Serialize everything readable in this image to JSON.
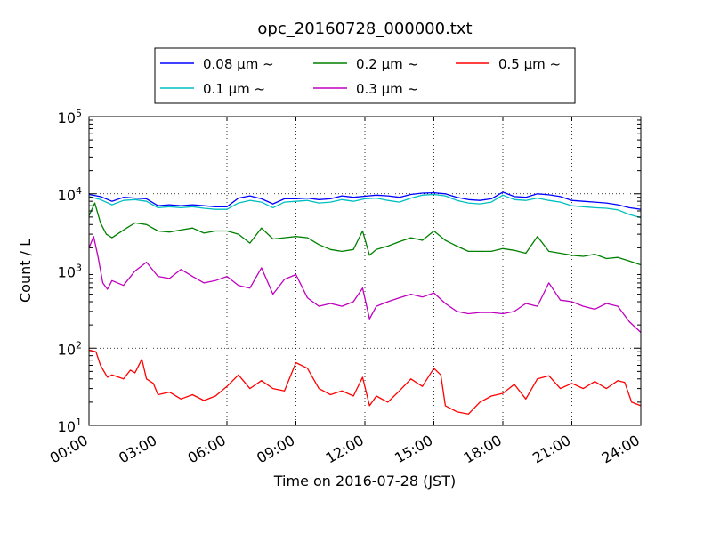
{
  "chart_data": {
    "type": "line",
    "title": "opc_20160728_000000.txt",
    "xlabel": "Time on 2016-07-28 (JST)",
    "ylabel": "Count / L",
    "x_ticks": [
      "00:00",
      "03:00",
      "06:00",
      "09:00",
      "12:00",
      "15:00",
      "18:00",
      "21:00",
      "24:00"
    ],
    "x_range_hours": [
      0,
      24
    ],
    "y_scale": "log",
    "y_ticks": [
      {
        "base": "10",
        "exp": "1"
      },
      {
        "base": "10",
        "exp": "2"
      },
      {
        "base": "10",
        "exp": "3"
      },
      {
        "base": "10",
        "exp": "4"
      },
      {
        "base": "10",
        "exp": "5"
      }
    ],
    "ylim": [
      10,
      100000
    ],
    "grid": true,
    "legend_position": "top-center",
    "x_unit": "hours since 00:00",
    "series": [
      {
        "name": "0.08 μm ~",
        "color": "#0000ff",
        "x": [
          0.0,
          0.5,
          1.0,
          1.5,
          2.0,
          2.5,
          3.0,
          3.5,
          4.0,
          4.5,
          5.0,
          5.5,
          6.0,
          6.5,
          7.0,
          7.5,
          8.0,
          8.5,
          9.0,
          9.5,
          10.0,
          10.5,
          11.0,
          11.5,
          12.0,
          12.5,
          13.0,
          13.5,
          14.0,
          14.5,
          15.0,
          15.5,
          16.0,
          16.5,
          17.0,
          17.5,
          18.0,
          18.5,
          19.0,
          19.5,
          20.0,
          20.5,
          21.0,
          21.5,
          22.0,
          22.5,
          23.0,
          23.5,
          24.0
        ],
        "y": [
          9800,
          9200,
          8000,
          9000,
          8800,
          8600,
          7000,
          7200,
          7000,
          7200,
          7000,
          6800,
          6800,
          8800,
          9400,
          8600,
          7400,
          8600,
          8600,
          8800,
          8400,
          8600,
          9400,
          9000,
          9300,
          9600,
          9400,
          9000,
          9800,
          10200,
          10300,
          10000,
          9000,
          8400,
          8200,
          8600,
          10500,
          9200,
          9000,
          10000,
          9700,
          9200,
          8200,
          8000,
          7800,
          7600,
          7200,
          6600,
          6300
        ]
      },
      {
        "name": "0.1 μm ~",
        "color": "#00bfbf",
        "x": [
          0.0,
          0.5,
          1.0,
          1.5,
          2.0,
          2.5,
          3.0,
          3.5,
          4.0,
          4.5,
          5.0,
          5.5,
          6.0,
          6.5,
          7.0,
          7.5,
          8.0,
          8.5,
          9.0,
          9.5,
          10.0,
          10.5,
          11.0,
          11.5,
          12.0,
          12.5,
          13.0,
          13.5,
          14.0,
          14.5,
          15.0,
          15.5,
          16.0,
          16.5,
          17.0,
          17.5,
          18.0,
          18.5,
          19.0,
          19.5,
          20.0,
          20.5,
          21.0,
          21.5,
          22.0,
          22.5,
          23.0,
          23.5,
          24.0
        ],
        "y": [
          9200,
          8400,
          7200,
          8200,
          8400,
          8000,
          6600,
          6800,
          6600,
          6800,
          6500,
          6300,
          6300,
          7600,
          8200,
          7800,
          6600,
          7800,
          8000,
          8200,
          7600,
          7800,
          8400,
          8000,
          8600,
          8800,
          8200,
          7800,
          8800,
          9600,
          9800,
          9400,
          8200,
          7600,
          7400,
          7800,
          9600,
          8400,
          8200,
          8800,
          8200,
          7800,
          7000,
          6800,
          6600,
          6500,
          6200,
          5400,
          4900
        ]
      },
      {
        "name": "0.2 μm ~",
        "color": "#008000",
        "x": [
          0.0,
          0.25,
          0.5,
          0.75,
          1.0,
          1.5,
          2.0,
          2.5,
          3.0,
          3.5,
          4.0,
          4.5,
          5.0,
          5.5,
          6.0,
          6.5,
          7.0,
          7.5,
          8.0,
          8.5,
          9.0,
          9.5,
          10.0,
          10.5,
          11.0,
          11.5,
          11.9,
          12.2,
          12.5,
          13.0,
          13.5,
          14.0,
          14.5,
          15.0,
          15.5,
          16.0,
          16.5,
          17.0,
          17.5,
          18.0,
          18.5,
          19.0,
          19.5,
          20.0,
          20.5,
          21.0,
          21.5,
          22.0,
          22.5,
          23.0,
          23.5,
          24.0
        ],
        "y": [
          5200,
          7600,
          4200,
          3000,
          2700,
          3400,
          4200,
          4000,
          3300,
          3200,
          3400,
          3600,
          3100,
          3300,
          3300,
          3000,
          2300,
          3600,
          2600,
          2700,
          2800,
          2700,
          2200,
          1900,
          1800,
          1900,
          3300,
          1600,
          1900,
          2100,
          2400,
          2700,
          2500,
          3300,
          2500,
          2100,
          1800,
          1800,
          1800,
          1950,
          1850,
          1700,
          2800,
          1800,
          1700,
          1600,
          1550,
          1650,
          1450,
          1500,
          1350,
          1200
        ]
      },
      {
        "name": "0.3 μm ~",
        "color": "#bf00bf",
        "x": [
          0.0,
          0.2,
          0.4,
          0.6,
          0.8,
          1.0,
          1.5,
          2.0,
          2.5,
          3.0,
          3.5,
          4.0,
          4.5,
          5.0,
          5.5,
          6.0,
          6.5,
          7.0,
          7.5,
          8.0,
          8.5,
          9.0,
          9.5,
          10.0,
          10.5,
          11.0,
          11.5,
          11.9,
          12.2,
          12.5,
          13.0,
          13.5,
          14.0,
          14.5,
          15.0,
          15.5,
          16.0,
          16.5,
          17.0,
          17.5,
          18.0,
          18.5,
          19.0,
          19.5,
          20.0,
          20.5,
          21.0,
          21.5,
          22.0,
          22.5,
          23.0,
          23.5,
          24.0
        ],
        "y": [
          2000,
          2800,
          1500,
          700,
          580,
          750,
          650,
          1000,
          1300,
          850,
          800,
          1050,
          850,
          700,
          750,
          850,
          650,
          600,
          1100,
          500,
          780,
          900,
          450,
          350,
          380,
          350,
          400,
          600,
          240,
          350,
          400,
          450,
          500,
          460,
          520,
          380,
          300,
          280,
          290,
          290,
          280,
          300,
          380,
          350,
          700,
          420,
          400,
          350,
          320,
          380,
          350,
          220,
          160
        ]
      },
      {
        "name": "0.5 μm ~",
        "color": "#ff0000",
        "x": [
          0.0,
          0.3,
          0.5,
          0.8,
          1.0,
          1.5,
          1.8,
          2.0,
          2.3,
          2.5,
          2.8,
          3.0,
          3.5,
          4.0,
          4.5,
          5.0,
          5.5,
          6.0,
          6.5,
          7.0,
          7.5,
          8.0,
          8.5,
          9.0,
          9.5,
          10.0,
          10.5,
          11.0,
          11.5,
          11.9,
          12.2,
          12.5,
          13.0,
          13.5,
          14.0,
          14.5,
          15.0,
          15.3,
          15.5,
          16.0,
          16.5,
          17.0,
          17.5,
          18.0,
          18.5,
          19.0,
          19.5,
          20.0,
          20.5,
          21.0,
          21.5,
          22.0,
          22.5,
          23.0,
          23.3,
          23.6,
          24.0
        ],
        "y": [
          95,
          90,
          60,
          42,
          45,
          40,
          52,
          48,
          72,
          40,
          35,
          25,
          27,
          22,
          25,
          21,
          24,
          32,
          45,
          30,
          38,
          30,
          28,
          65,
          55,
          30,
          25,
          28,
          24,
          42,
          18,
          24,
          20,
          28,
          40,
          32,
          55,
          45,
          18,
          15,
          14,
          20,
          24,
          26,
          34,
          22,
          40,
          44,
          30,
          35,
          30,
          37,
          30,
          38,
          36,
          20,
          18
        ]
      }
    ]
  }
}
